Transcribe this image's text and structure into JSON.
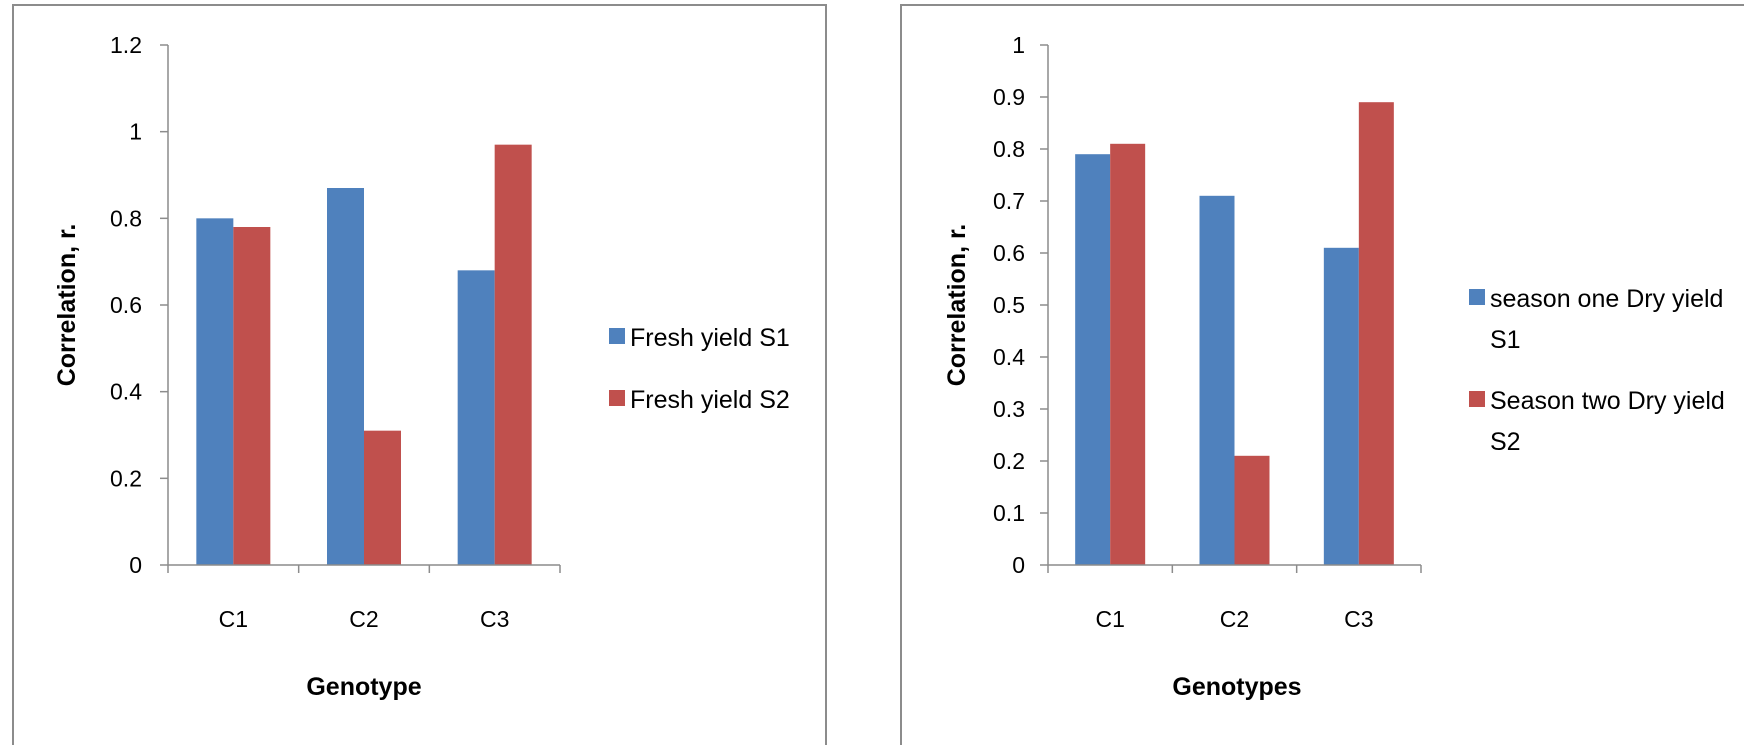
{
  "colors": {
    "series1": "#4f81bd",
    "series2": "#c0504d",
    "axis": "#8c8c8c",
    "border": "#8c8c8c"
  },
  "chart_data": [
    {
      "type": "bar",
      "categories": [
        "C1",
        "C2",
        "C3"
      ],
      "series": [
        {
          "name": "Fresh yield S1",
          "values": [
            0.8,
            0.87,
            0.68
          ]
        },
        {
          "name": "Fresh yield S2",
          "values": [
            0.78,
            0.31,
            0.97
          ]
        }
      ],
      "xlabel": "Genotype",
      "ylabel": "Correlation, r.",
      "ylim": [
        0,
        1.2
      ],
      "yticks": [
        "0",
        "0.2",
        "0.4",
        "0.6",
        "0.8",
        "1",
        "1.2"
      ],
      "legend_position": "right",
      "grid": false
    },
    {
      "type": "bar",
      "categories": [
        "C1",
        "C2",
        "C3"
      ],
      "series": [
        {
          "name": "season one Dry yield S1",
          "name_lines": [
            "season one Dry yield",
            "S1"
          ],
          "values": [
            0.79,
            0.71,
            0.61
          ]
        },
        {
          "name": "Season two Dry yield S2",
          "name_lines": [
            "Season two Dry yield",
            "S2"
          ],
          "values": [
            0.81,
            0.21,
            0.89
          ]
        }
      ],
      "xlabel": "Genotypes",
      "ylabel": "Correlation, r.",
      "ylim": [
        0,
        1
      ],
      "yticks": [
        "0",
        "0.1",
        "0.2",
        "0.3",
        "0.4",
        "0.5",
        "0.6",
        "0.7",
        "0.8",
        "0.9",
        "1"
      ],
      "legend_position": "right",
      "grid": false
    }
  ]
}
